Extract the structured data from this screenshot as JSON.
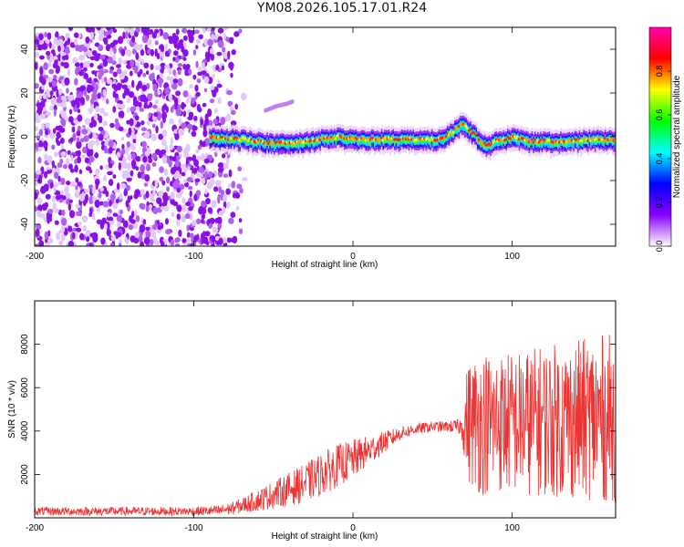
{
  "figure": {
    "title": "YM08.2026.105.17.01.R24"
  },
  "chart_data": [
    {
      "type": "heatmap",
      "xlabel": "Height of straight line (km)",
      "ylabel": "Frequency (Hz)",
      "xlim": [
        -200,
        165
      ],
      "ylim": [
        -50,
        50
      ],
      "x_ticks": [
        -200,
        -100,
        0,
        100
      ],
      "x_tick_labels": [
        "-200",
        "-100",
        "0",
        "100"
      ],
      "y_ticks": [
        -40,
        -20,
        0,
        20,
        40
      ],
      "y_tick_labels": [
        "-40",
        "-20",
        "0",
        "20",
        "40"
      ],
      "colorbar": {
        "label": "Normalized spectral amplitude",
        "range": [
          0,
          1
        ],
        "ticks": [
          0.0,
          0.2,
          0.4,
          0.6,
          0.8
        ],
        "tick_labels": [
          "0.0",
          "0.2",
          "0.4",
          "0.6",
          "0.8"
        ],
        "colors": [
          "#ffffff",
          "#8800ff",
          "#0000ff",
          "#00ffff",
          "#00ff00",
          "#ffff00",
          "#ff0000",
          "#ff00aa"
        ]
      },
      "noise_region_x": [
        -200,
        -90
      ],
      "ridge": {
        "x": [
          -90,
          -70,
          -50,
          -40,
          -30,
          -20,
          -10,
          0,
          20,
          40,
          55,
          62,
          68,
          75,
          80,
          85,
          90,
          100,
          110,
          130,
          150,
          165
        ],
        "y": [
          0,
          -1,
          -3,
          -3,
          -2,
          -1,
          0,
          -1,
          -1,
          -1,
          -1,
          2,
          6,
          2,
          -2,
          -4,
          -2,
          0,
          -2,
          -2,
          -1,
          -1
        ]
      },
      "secondary_trace": {
        "x": [
          -55,
          -48,
          -42,
          -38
        ],
        "y": [
          12,
          14,
          15,
          16
        ]
      }
    },
    {
      "type": "line",
      "xlabel": "Height of straight line (km)",
      "ylabel": "SNR (10 * v/v)",
      "xlim": [
        -200,
        165
      ],
      "ylim": [
        0,
        10000
      ],
      "x_ticks": [
        -200,
        -100,
        0,
        100
      ],
      "x_tick_labels": [
        "-200",
        "-100",
        "0",
        "100"
      ],
      "y_ticks": [
        2000,
        4000,
        6000,
        8000
      ],
      "y_tick_labels": [
        "2000",
        "4000",
        "6000",
        "8000"
      ],
      "series": [
        {
          "name": "SNR",
          "color": "#ee3333",
          "envelope_x": [
            -200,
            -150,
            -100,
            -85,
            -75,
            -60,
            -45,
            -30,
            -20,
            -10,
            0,
            10,
            20,
            30,
            40,
            50,
            60,
            68,
            72,
            80,
            90,
            100,
            110,
            120,
            130,
            140,
            150,
            160,
            165
          ],
          "envelope_mean": [
            300,
            300,
            300,
            320,
            450,
            800,
            1200,
            1600,
            2000,
            2400,
            2700,
            3100,
            3500,
            3900,
            4100,
            4200,
            4200,
            4200,
            4400,
            4400,
            4400,
            4400,
            4400,
            4500,
            4500,
            4500,
            4600,
            4600,
            4600
          ],
          "envelope_spread": [
            200,
            200,
            200,
            250,
            300,
            500,
            700,
            900,
            1000,
            1000,
            900,
            700,
            500,
            300,
            250,
            250,
            250,
            400,
            2800,
            3400,
            3300,
            3300,
            3400,
            3500,
            3600,
            3700,
            3800,
            3900,
            3900
          ]
        }
      ]
    }
  ]
}
